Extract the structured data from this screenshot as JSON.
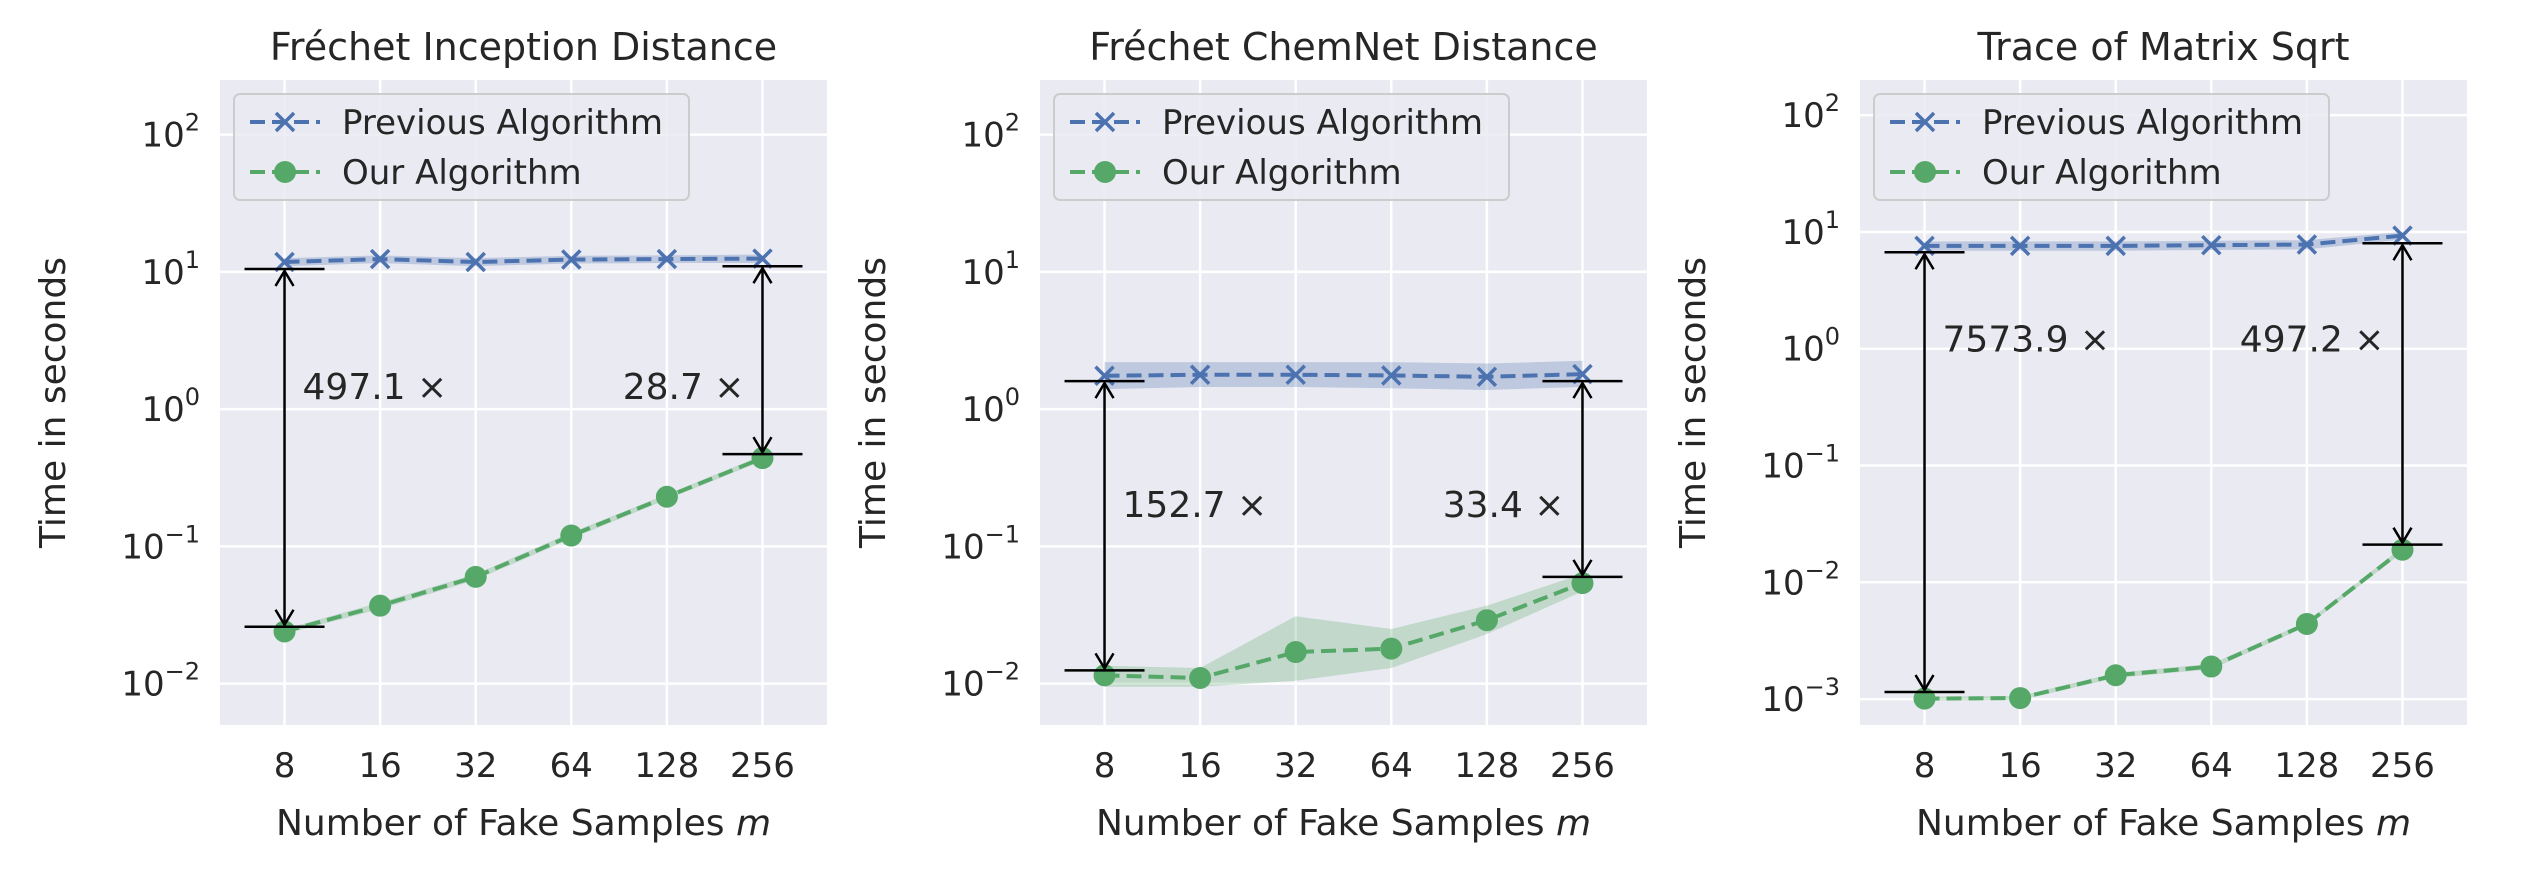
{
  "chart_data": [
    {
      "type": "line",
      "title": "Fréchet Inception Distance",
      "xlabel": "Number of Fake Samples",
      "xlabel_var": "m",
      "ylabel": "Time in seconds",
      "yscale": "log",
      "ylim": [
        0.005,
        250
      ],
      "x": [
        "8",
        "16",
        "32",
        "64",
        "128",
        "256"
      ],
      "ytick_exponents": [
        "−2",
        "−1",
        "0",
        "1",
        "2"
      ],
      "grid": true,
      "legend_position": "top-left",
      "series": [
        {
          "name": "Previous Algorithm",
          "marker": "x",
          "color": "#4c72b0",
          "values": [
            11.8,
            12.4,
            11.8,
            12.3,
            12.4,
            12.5
          ],
          "band_low": [
            11.0,
            11.6,
            11.0,
            11.5,
            11.6,
            11.6
          ],
          "band_high": [
            12.6,
            13.2,
            12.6,
            13.1,
            13.2,
            13.4
          ]
        },
        {
          "name": "Our Algorithm",
          "marker": "o",
          "color": "#55a868",
          "values": [
            0.024,
            0.037,
            0.06,
            0.12,
            0.23,
            0.44
          ],
          "band_low": [
            0.023,
            0.035,
            0.057,
            0.114,
            0.22,
            0.42
          ],
          "band_high": [
            0.025,
            0.039,
            0.063,
            0.126,
            0.24,
            0.46
          ]
        }
      ],
      "annotations": [
        {
          "text": "497.1 ×",
          "x_index": 0,
          "y_low": 0.026,
          "y_high": 10.5,
          "label_y": 1.45,
          "side": "right"
        },
        {
          "text": "28.7 ×",
          "x_index": 5,
          "y_low": 0.47,
          "y_high": 11.0,
          "label_y": 1.45,
          "side": "left"
        }
      ]
    },
    {
      "type": "line",
      "title": "Fréchet ChemNet Distance",
      "xlabel": "Number of Fake Samples",
      "xlabel_var": "m",
      "ylabel": "Time in seconds",
      "yscale": "log",
      "ylim": [
        0.005,
        250
      ],
      "x": [
        "8",
        "16",
        "32",
        "64",
        "128",
        "256"
      ],
      "ytick_exponents": [
        "−2",
        "−1",
        "0",
        "1",
        "2"
      ],
      "grid": true,
      "legend_position": "top-left",
      "series": [
        {
          "name": "Previous Algorithm",
          "marker": "x",
          "color": "#4c72b0",
          "values": [
            1.75,
            1.78,
            1.78,
            1.76,
            1.72,
            1.8
          ],
          "band_low": [
            1.4,
            1.45,
            1.45,
            1.42,
            1.38,
            1.45
          ],
          "band_high": [
            2.2,
            2.2,
            2.2,
            2.2,
            2.15,
            2.25
          ]
        },
        {
          "name": "Our Algorithm",
          "marker": "o",
          "color": "#55a868",
          "values": [
            0.0115,
            0.011,
            0.017,
            0.018,
            0.029,
            0.054
          ],
          "band_low": [
            0.0095,
            0.0095,
            0.0105,
            0.013,
            0.023,
            0.047
          ],
          "band_high": [
            0.0135,
            0.013,
            0.031,
            0.025,
            0.037,
            0.063
          ]
        }
      ],
      "annotations": [
        {
          "text": "152.7 ×",
          "x_index": 0,
          "y_low": 0.0125,
          "y_high": 1.6,
          "label_y": 0.2,
          "side": "right"
        },
        {
          "text": "33.4 ×",
          "x_index": 5,
          "y_low": 0.06,
          "y_high": 1.6,
          "label_y": 0.2,
          "side": "left"
        }
      ]
    },
    {
      "type": "line",
      "title": "Trace of Matrix Sqrt",
      "xlabel": "Number of Fake Samples",
      "xlabel_var": "m",
      "ylabel": "Time in seconds",
      "yscale": "log",
      "ylim": [
        0.0006,
        200
      ],
      "x": [
        "8",
        "16",
        "32",
        "64",
        "128",
        "256"
      ],
      "ytick_exponents": [
        "−3",
        "−2",
        "−1",
        "0",
        "1",
        "2"
      ],
      "grid": true,
      "legend_position": "top-left",
      "series": [
        {
          "name": "Previous Algorithm",
          "marker": "x",
          "color": "#4c72b0",
          "values": [
            7.6,
            7.6,
            7.6,
            7.7,
            7.8,
            9.3
          ],
          "band_low": [
            6.9,
            6.9,
            6.9,
            7.0,
            7.1,
            8.6
          ],
          "band_high": [
            8.3,
            8.3,
            8.3,
            8.4,
            8.5,
            10.0
          ]
        },
        {
          "name": "Our Algorithm",
          "marker": "o",
          "color": "#55a868",
          "values": [
            0.00101,
            0.00102,
            0.0016,
            0.0019,
            0.0044,
            0.019
          ],
          "band_low": [
            0.00097,
            0.00098,
            0.00152,
            0.0018,
            0.0042,
            0.018
          ],
          "band_high": [
            0.00105,
            0.00106,
            0.00168,
            0.002,
            0.0046,
            0.02
          ]
        }
      ],
      "annotations": [
        {
          "text": "7573.9 ×",
          "x_index": 0,
          "y_low": 0.00115,
          "y_high": 6.7,
          "label_y": 1.2,
          "side": "right"
        },
        {
          "text": "497.2 ×",
          "x_index": 5,
          "y_low": 0.021,
          "y_high": 8.0,
          "label_y": 1.2,
          "side": "left"
        }
      ]
    }
  ]
}
